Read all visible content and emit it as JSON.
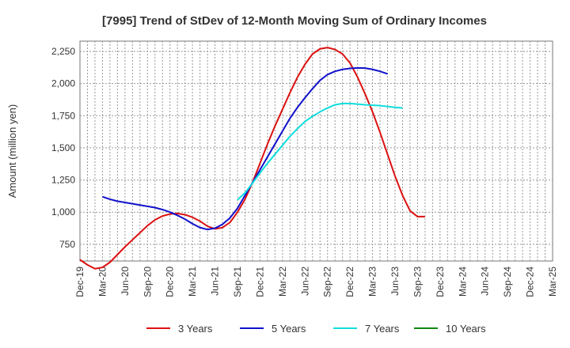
{
  "chart_data": {
    "type": "line",
    "title": "[7995]  Trend of StDev of 12-Month Moving Sum of Ordinary Incomes",
    "xlabel": "",
    "ylabel": "Amount (million yen)",
    "ylim": [
      620,
      2330
    ],
    "yticks": [
      750,
      1000,
      1250,
      1500,
      1750,
      2000,
      2250
    ],
    "ytick_labels": [
      "750",
      "1,000",
      "1,250",
      "1,500",
      "1,750",
      "2,000",
      "2,250"
    ],
    "x_tick_labels": [
      "Dec-19",
      "Mar-20",
      "Jun-20",
      "Sep-20",
      "Dec-20",
      "Mar-21",
      "Jun-21",
      "Sep-21",
      "Dec-21",
      "Mar-22",
      "Jun-22",
      "Sep-22",
      "Dec-22",
      "Mar-23",
      "Jun-23",
      "Sep-23",
      "Dec-23",
      "Mar-24",
      "Jun-24",
      "Sep-24",
      "Dec-24",
      "Mar-25"
    ],
    "grid": true,
    "legend_position": "bottom",
    "series": [
      {
        "name": "3 Years",
        "color": "#dd1111",
        "start_index": 0,
        "values": [
          630,
          590,
          560,
          570,
          610,
          670,
          730,
          785,
          840,
          895,
          940,
          970,
          985,
          990,
          980,
          960,
          930,
          890,
          870,
          880,
          920,
          1000,
          1100,
          1230,
          1380,
          1530,
          1670,
          1800,
          1930,
          2050,
          2150,
          2230,
          2270,
          2280,
          2265,
          2230,
          2160,
          2050,
          1920,
          1780,
          1620,
          1450,
          1280,
          1130,
          1010,
          965,
          965
        ]
      },
      {
        "name": "5 Years",
        "color": "#1111cc",
        "start_index": 3,
        "values": [
          1120,
          1100,
          1085,
          1075,
          1065,
          1055,
          1045,
          1035,
          1020,
          1000,
          975,
          945,
          910,
          880,
          865,
          875,
          905,
          955,
          1030,
          1130,
          1230,
          1330,
          1430,
          1530,
          1630,
          1730,
          1815,
          1890,
          1960,
          2025,
          2070,
          2095,
          2110,
          2118,
          2122,
          2120,
          2110,
          2095,
          2075
        ]
      },
      {
        "name": "7 Years",
        "color": "#11dddd",
        "start_index": 21,
        "values": [
          1095,
          1150,
          1225,
          1305,
          1380,
          1450,
          1520,
          1590,
          1650,
          1705,
          1745,
          1780,
          1810,
          1835,
          1845,
          1845,
          1840,
          1835,
          1832,
          1828,
          1822,
          1815,
          1810
        ]
      },
      {
        "name": "10 Years",
        "color": "#118811",
        "start_index": 0,
        "values": []
      }
    ]
  }
}
